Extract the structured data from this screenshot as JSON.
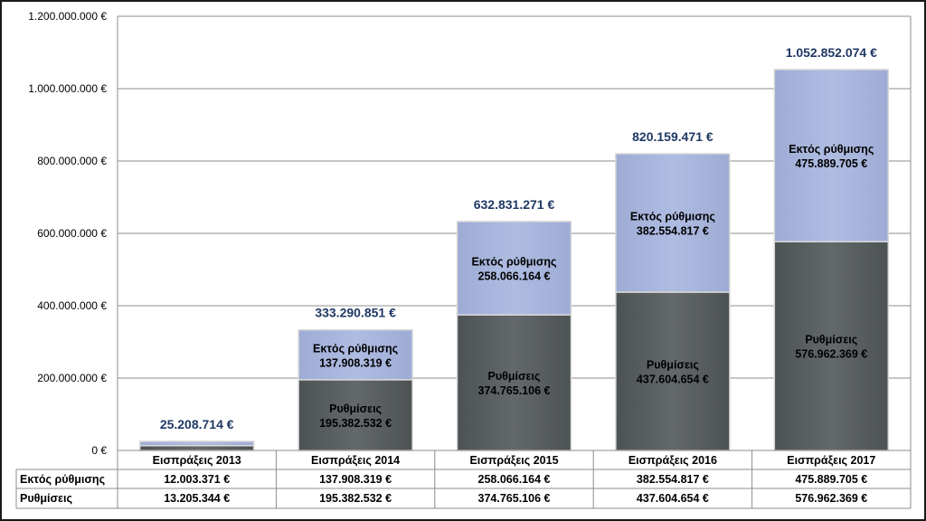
{
  "chart_data": {
    "type": "bar",
    "stacked": true,
    "categories": [
      "Εισπράξεις 2013",
      "Εισπράξεις 2014",
      "Εισπράξεις 2015",
      "Εισπράξεις 2016",
      "Εισπράξεις 2017"
    ],
    "series": [
      {
        "name": "Ρυθμίσεις",
        "short_label": "Ρυθμίσεις",
        "color": "#5f6466",
        "values": [
          13205344,
          195382532,
          374765106,
          437604654,
          576962369
        ],
        "labels": [
          "13.205.344 €",
          "195.382.532 €",
          "374.765.106 €",
          "437.604.654 €",
          "576.962.369 €"
        ],
        "show_segment_label": [
          false,
          true,
          true,
          true,
          true
        ]
      },
      {
        "name": "Εκτός ρύθμισης",
        "short_label": "Εκτός ρύθμισης",
        "color": "#a9b6dd",
        "values": [
          12003371,
          137908319,
          258066164,
          382554817,
          475889705
        ],
        "labels": [
          "12.003.371 €",
          "137.908.319 €",
          "258.066.164 €",
          "382.554.817 €",
          "475.889.705 €"
        ],
        "show_segment_label": [
          false,
          true,
          true,
          true,
          true
        ]
      }
    ],
    "totals": [
      25208714,
      333290851,
      632831271,
      820159471,
      1052852074
    ],
    "total_labels": [
      "25.208.714 €",
      "333.290.851 €",
      "632.831.271 €",
      "820.159.471 €",
      "1.052.852.074 €"
    ],
    "ylim": [
      0,
      1200000000
    ],
    "yticks": [
      0,
      200000000,
      400000000,
      600000000,
      800000000,
      1000000000,
      1200000000
    ],
    "ytick_labels": [
      "0 €",
      "200.000.000 €",
      "400.000.000 €",
      "600.000.000 €",
      "800.000.000 €",
      "1.000.000.000 €",
      "1.200.000.000 €"
    ],
    "grid": true,
    "title": "",
    "xlabel": "",
    "ylabel": "",
    "data_table_rows": [
      "Εκτός ρύθμισης",
      "Ρυθμίσεις"
    ]
  }
}
